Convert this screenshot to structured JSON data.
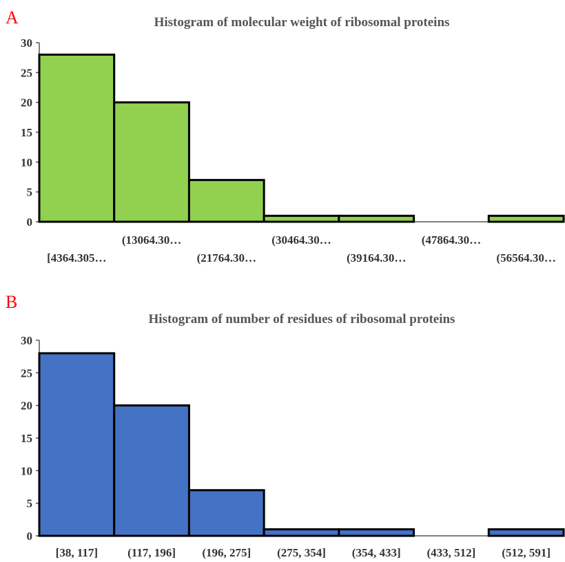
{
  "chart_data": [
    {
      "panel": "A",
      "type": "bar",
      "title": "Histogram of molecular weight of ribosomal proteins",
      "categories": [
        "[4364.305…",
        "(13064.30…",
        "(21764.30…",
        "(30464.30…",
        "(39164.30…",
        "(47864.30…",
        "(56564.30…"
      ],
      "values": [
        28,
        20,
        7,
        1,
        1,
        0,
        1
      ],
      "yticks": [
        "0",
        "5",
        "10",
        "15",
        "20",
        "25",
        "30"
      ],
      "ylim": [
        0,
        30
      ],
      "bar_color": "#92d050",
      "xlabel": "",
      "ylabel": ""
    },
    {
      "panel": "B",
      "type": "bar",
      "title": "Histogram of number of residues of ribosomal proteins",
      "categories": [
        "[38, 117]",
        "(117, 196]",
        "(196, 275]",
        "(275, 354]",
        "(354, 433]",
        "(433, 512]",
        "(512, 591]"
      ],
      "values": [
        28,
        20,
        7,
        1,
        1,
        0,
        1
      ],
      "yticks": [
        "0",
        "5",
        "10",
        "15",
        "20",
        "25",
        "30"
      ],
      "ylim": [
        0,
        30
      ],
      "bar_color": "#4472c4",
      "xlabel": "",
      "ylabel": ""
    }
  ]
}
